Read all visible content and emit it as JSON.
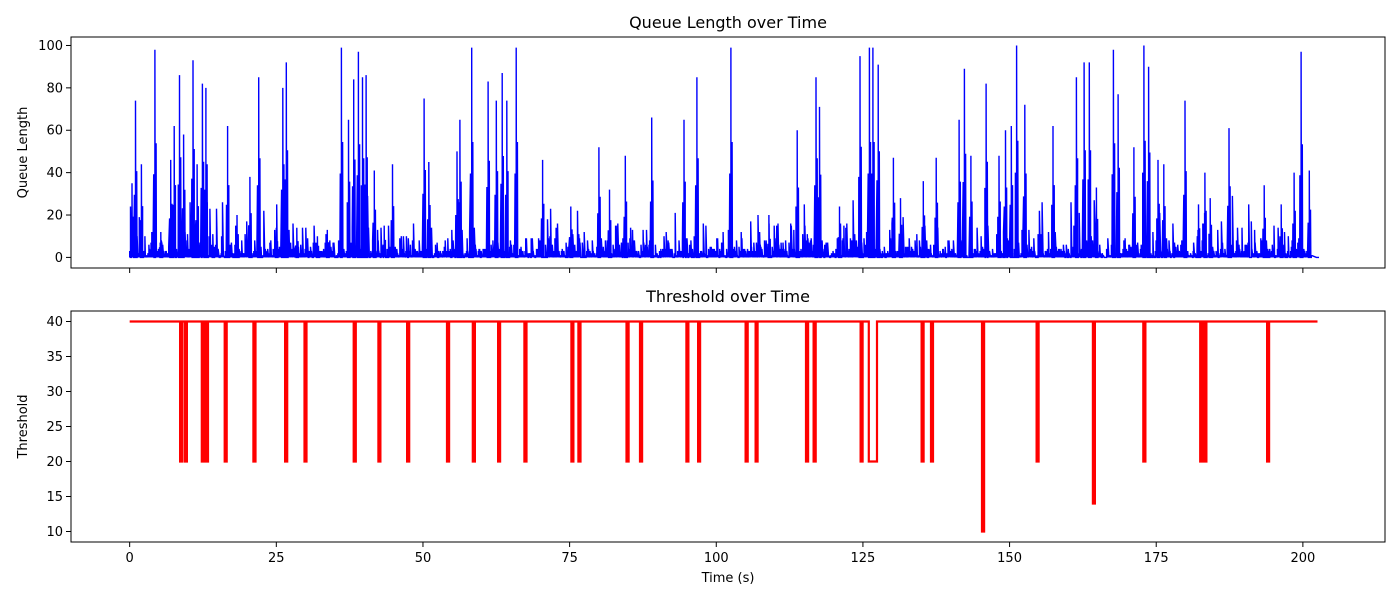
{
  "chart_data": [
    {
      "type": "line",
      "title": "Queue Length over Time",
      "xlabel": "",
      "ylabel": "Queue Length",
      "xlim": [
        -10,
        214
      ],
      "ylim": [
        -5,
        104
      ],
      "xticks": [
        0,
        25,
        50,
        75,
        100,
        125,
        150,
        175,
        200
      ],
      "xtick_labels_visible": false,
      "yticks": [
        0,
        20,
        40,
        60,
        80,
        100
      ],
      "ytick_labels": [
        "0",
        "20",
        "40",
        "60",
        "80",
        "100"
      ],
      "grid": false,
      "series": [
        {
          "color": "#0000ff",
          "style": "dense spiky step trace",
          "peaks": [
            [
              0.4,
              35
            ],
            [
              1.0,
              74
            ],
            [
              2.0,
              44
            ],
            [
              4.3,
              98
            ],
            [
              5.3,
              12
            ],
            [
              7.0,
              46
            ],
            [
              7.6,
              62
            ],
            [
              8.5,
              86
            ],
            [
              9.2,
              58
            ],
            [
              10.8,
              93
            ],
            [
              11.5,
              44
            ],
            [
              12.4,
              82
            ],
            [
              13.0,
              80
            ],
            [
              16.7,
              62
            ],
            [
              18.3,
              20
            ],
            [
              20.5,
              38
            ],
            [
              22.0,
              85
            ],
            [
              25.0,
              14
            ],
            [
              26.1,
              80
            ],
            [
              26.7,
              92
            ],
            [
              28.5,
              14
            ],
            [
              32.0,
              10
            ],
            [
              33.7,
              13
            ],
            [
              36.1,
              99
            ],
            [
              37.3,
              65
            ],
            [
              38.2,
              84
            ],
            [
              39.0,
              97
            ],
            [
              39.7,
              85
            ],
            [
              40.3,
              86
            ],
            [
              41.7,
              41
            ],
            [
              43.4,
              15
            ],
            [
              44.8,
              44
            ],
            [
              50.2,
              75
            ],
            [
              51.0,
              45
            ],
            [
              55.8,
              50
            ],
            [
              56.3,
              65
            ],
            [
              58.3,
              99
            ],
            [
              61.1,
              83
            ],
            [
              62.5,
              74
            ],
            [
              63.5,
              87
            ],
            [
              64.3,
              74
            ],
            [
              65.9,
              99
            ],
            [
              70.4,
              46
            ],
            [
              75.2,
              24
            ],
            [
              80.0,
              52
            ],
            [
              81.8,
              32
            ],
            [
              84.5,
              48
            ],
            [
              89.0,
              66
            ],
            [
              94.5,
              65
            ],
            [
              96.7,
              85
            ],
            [
              102.5,
              99
            ],
            [
              109.0,
              16
            ],
            [
              113.8,
              60
            ],
            [
              117.0,
              85
            ],
            [
              117.6,
              71
            ],
            [
              121.0,
              24
            ],
            [
              124.5,
              95
            ],
            [
              126.1,
              99
            ],
            [
              126.7,
              99
            ],
            [
              127.6,
              91
            ],
            [
              130.2,
              47
            ],
            [
              131.4,
              28
            ],
            [
              135.3,
              36
            ],
            [
              137.5,
              47
            ],
            [
              141.4,
              65
            ],
            [
              142.3,
              89
            ],
            [
              143.4,
              48
            ],
            [
              146.0,
              82
            ],
            [
              148.2,
              48
            ],
            [
              149.3,
              60
            ],
            [
              150.3,
              62
            ],
            [
              151.2,
              100
            ],
            [
              152.6,
              72
            ],
            [
              157.4,
              62
            ],
            [
              161.4,
              85
            ],
            [
              162.7,
              92
            ],
            [
              163.6,
              92
            ],
            [
              164.8,
              33
            ],
            [
              167.7,
              98
            ],
            [
              168.5,
              77
            ],
            [
              171.2,
              52
            ],
            [
              172.9,
              100
            ],
            [
              173.7,
              90
            ],
            [
              175.3,
              46
            ],
            [
              176.3,
              44
            ],
            [
              179.9,
              74
            ],
            [
              182.2,
              25
            ],
            [
              183.3,
              40
            ],
            [
              184.2,
              28
            ],
            [
              187.4,
              61
            ],
            [
              193.4,
              34
            ],
            [
              196.3,
              25
            ],
            [
              198.5,
              40
            ],
            [
              199.7,
              97
            ],
            [
              201.1,
              41
            ],
            [
              202.5,
              0
            ]
          ]
        }
      ]
    },
    {
      "type": "line",
      "title": "Threshold over Time",
      "xlabel": "Time (s)",
      "ylabel": "Threshold",
      "xlim": [
        -10,
        214
      ],
      "ylim": [
        8.5,
        41.5
      ],
      "xticks": [
        0,
        25,
        50,
        75,
        100,
        125,
        150,
        175,
        200
      ],
      "xtick_labels": [
        "0",
        "25",
        "50",
        "75",
        "100",
        "125",
        "150",
        "175",
        "200"
      ],
      "yticks": [
        10,
        15,
        20,
        25,
        30,
        35,
        40
      ],
      "ytick_labels": [
        "10",
        "15",
        "20",
        "25",
        "30",
        "35",
        "40"
      ],
      "grid": false,
      "series": [
        {
          "color": "#ff0000",
          "baseline": 40,
          "x_end": 202.5,
          "dips": [
            {
              "x": 8.6,
              "y": 20
            },
            {
              "x": 9.4,
              "y": 20
            },
            {
              "x": 12.3,
              "y": 20
            },
            {
              "x": 13.0,
              "y": 20
            },
            {
              "x": 16.2,
              "y": 20
            },
            {
              "x": 21.1,
              "y": 20
            },
            {
              "x": 26.5,
              "y": 20
            },
            {
              "x": 29.8,
              "y": 20
            },
            {
              "x": 38.2,
              "y": 20
            },
            {
              "x": 42.4,
              "y": 20
            },
            {
              "x": 47.3,
              "y": 20
            },
            {
              "x": 54.1,
              "y": 20
            },
            {
              "x": 58.5,
              "y": 20
            },
            {
              "x": 62.8,
              "y": 20
            },
            {
              "x": 67.3,
              "y": 20
            },
            {
              "x": 75.3,
              "y": 20
            },
            {
              "x": 76.5,
              "y": 20
            },
            {
              "x": 84.7,
              "y": 20
            },
            {
              "x": 87.0,
              "y": 20
            },
            {
              "x": 94.9,
              "y": 20
            },
            {
              "x": 96.9,
              "y": 20
            },
            {
              "x": 105.0,
              "y": 20
            },
            {
              "x": 106.7,
              "y": 20
            },
            {
              "x": 115.3,
              "y": 20
            },
            {
              "x": 116.6,
              "y": 20
            },
            {
              "x": 124.6,
              "y": 20
            },
            {
              "x": 126.0,
              "y": 20,
              "to": 127.4
            },
            {
              "x": 135.0,
              "y": 20
            },
            {
              "x": 136.6,
              "y": 20
            },
            {
              "x": 145.3,
              "y": 10
            },
            {
              "x": 154.6,
              "y": 20
            },
            {
              "x": 164.2,
              "y": 14
            },
            {
              "x": 172.8,
              "y": 20
            },
            {
              "x": 182.5,
              "y": 20
            },
            {
              "x": 183.2,
              "y": 20
            },
            {
              "x": 193.9,
              "y": 20
            }
          ]
        }
      ]
    }
  ]
}
